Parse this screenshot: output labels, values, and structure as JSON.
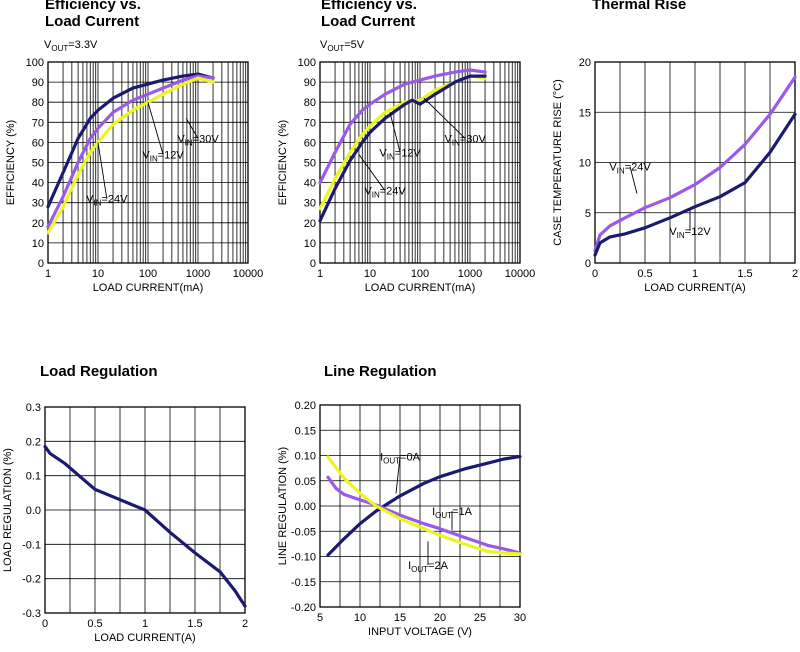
{
  "colors": {
    "navy": "#1c1a6e",
    "purple": "#9b59e8",
    "yellow": "#ecf520"
  },
  "chart_data": [
    {
      "type": "line",
      "title": "Efficiency vs.\nLoad Current",
      "subtitle_main": "V",
      "subtitle_sub": "OUT",
      "subtitle_tail": "=3.3V",
      "xlabel": "LOAD CURRENT(mA)",
      "ylabel": "EFFICIENCY (%)",
      "xscale": "log",
      "xlim": [
        1,
        10000
      ],
      "ylim": [
        0,
        100
      ],
      "xticks": [
        1,
        10,
        100,
        1000,
        10000
      ],
      "xtick_labels": [
        "1",
        "10",
        "100",
        "1000",
        "10000"
      ],
      "yticks": [
        0,
        10,
        20,
        30,
        40,
        50,
        60,
        70,
        80,
        90,
        100
      ],
      "ytick_labels": [
        "0",
        "10",
        "20",
        "30",
        "40",
        "50",
        "60",
        "70",
        "80",
        "90",
        "100"
      ],
      "series": [
        {
          "color_key": "navy",
          "points": [
            [
              1,
              28
            ],
            [
              2,
              45
            ],
            [
              4,
              62
            ],
            [
              7,
              72
            ],
            [
              10,
              76
            ],
            [
              20,
              82
            ],
            [
              50,
              87
            ],
            [
              100,
              89
            ],
            [
              200,
              91
            ],
            [
              500,
              93
            ],
            [
              1000,
              94
            ],
            [
              2000,
              92
            ]
          ]
        },
        {
          "color_key": "purple",
          "points": [
            [
              1,
              18
            ],
            [
              2,
              33
            ],
            [
              4,
              50
            ],
            [
              7,
              62
            ],
            [
              10,
              67
            ],
            [
              20,
              75
            ],
            [
              50,
              81
            ],
            [
              100,
              84
            ],
            [
              200,
              87
            ],
            [
              500,
              91
            ],
            [
              1000,
              93
            ],
            [
              2000,
              92
            ]
          ]
        },
        {
          "color_key": "yellow",
          "points": [
            [
              1,
              15
            ],
            [
              2,
              28
            ],
            [
              4,
              44
            ],
            [
              7,
              55
            ],
            [
              10,
              60
            ],
            [
              20,
              69
            ],
            [
              50,
              76
            ],
            [
              100,
              80
            ],
            [
              200,
              84
            ],
            [
              500,
              89
            ],
            [
              1000,
              92
            ],
            [
              2000,
              90
            ]
          ]
        }
      ],
      "annotations": [
        {
          "text": "V",
          "sub": "IN",
          "tail": "=30V",
          "x": 1000,
          "y": 60,
          "lx": 580,
          "ly": 72
        },
        {
          "text": "V",
          "sub": "IN",
          "tail": "=12V",
          "x": 200,
          "y": 52,
          "lx": 100,
          "ly": 80
        },
        {
          "text": "V",
          "sub": "IN",
          "tail": "=24V",
          "x": 15,
          "y": 30,
          "lx": 10,
          "ly": 60
        }
      ]
    },
    {
      "type": "line",
      "title": "Efficiency vs.\nLoad Current",
      "subtitle_main": "V",
      "subtitle_sub": "OUT",
      "subtitle_tail": "=5V",
      "xlabel": "LOAD CURRENT(mA)",
      "ylabel": "EFFICIENCY (%)",
      "xscale": "log",
      "xlim": [
        1,
        10000
      ],
      "ylim": [
        0,
        100
      ],
      "xticks": [
        1,
        10,
        100,
        1000,
        10000
      ],
      "xtick_labels": [
        "1",
        "10",
        "100",
        "1000",
        "10000"
      ],
      "yticks": [
        0,
        10,
        20,
        30,
        40,
        50,
        60,
        70,
        80,
        90,
        100
      ],
      "ytick_labels": [
        "0",
        "10",
        "20",
        "30",
        "40",
        "50",
        "60",
        "70",
        "80",
        "90",
        "100"
      ],
      "series": [
        {
          "color_key": "purple",
          "points": [
            [
              1,
              40
            ],
            [
              2,
              55
            ],
            [
              4,
              69
            ],
            [
              7,
              76
            ],
            [
              10,
              79
            ],
            [
              20,
              84
            ],
            [
              50,
              89
            ],
            [
              100,
              91
            ],
            [
              200,
              93
            ],
            [
              500,
              95
            ],
            [
              1000,
              96
            ],
            [
              2000,
              95
            ]
          ]
        },
        {
          "color_key": "yellow",
          "points": [
            [
              1,
              27
            ],
            [
              2,
              42
            ],
            [
              4,
              55
            ],
            [
              7,
              64
            ],
            [
              10,
              68
            ],
            [
              20,
              75
            ],
            [
              50,
              80
            ],
            [
              100,
              81
            ],
            [
              200,
              86
            ],
            [
              500,
              90
            ],
            [
              1000,
              93
            ],
            [
              2000,
              92
            ]
          ]
        },
        {
          "color_key": "navy",
          "points": [
            [
              1,
              21
            ],
            [
              2,
              37
            ],
            [
              4,
              51
            ],
            [
              7,
              60
            ],
            [
              10,
              65
            ],
            [
              20,
              72
            ],
            [
              50,
              79
            ],
            [
              70,
              81
            ],
            [
              100,
              79
            ],
            [
              200,
              84
            ],
            [
              500,
              90
            ],
            [
              1000,
              93
            ],
            [
              2000,
              93
            ]
          ]
        }
      ],
      "annotations": [
        {
          "text": "V",
          "sub": "IN",
          "tail": "=30V",
          "x": 800,
          "y": 60,
          "lx": 120,
          "ly": 82
        },
        {
          "text": "V",
          "sub": "IN",
          "tail": "=12V",
          "x": 40,
          "y": 53,
          "lx": 25,
          "ly": 75
        },
        {
          "text": "V",
          "sub": "IN",
          "tail": "=24V",
          "x": 20,
          "y": 34,
          "lx": 6,
          "ly": 54
        }
      ]
    },
    {
      "type": "line",
      "title": "Thermal Rise",
      "xlabel": "LOAD CURRENT(A)",
      "ylabel": "CASE TEMPERATURE RISE (°C)",
      "xlim": [
        0,
        2
      ],
      "ylim": [
        0,
        20
      ],
      "xticks": [
        0,
        0.5,
        1,
        1.5,
        2
      ],
      "xtick_labels": [
        "0",
        "0.5",
        "1",
        "1.5",
        "2"
      ],
      "yticks": [
        0,
        5,
        10,
        15,
        20
      ],
      "ytick_labels": [
        "0",
        "5",
        "10",
        "15",
        "20"
      ],
      "series": [
        {
          "color_key": "purple",
          "points": [
            [
              0,
              1.2
            ],
            [
              0.05,
              2.8
            ],
            [
              0.15,
              3.7
            ],
            [
              0.3,
              4.5
            ],
            [
              0.5,
              5.5
            ],
            [
              0.75,
              6.5
            ],
            [
              1,
              7.8
            ],
            [
              1.25,
              9.5
            ],
            [
              1.5,
              11.8
            ],
            [
              1.75,
              14.8
            ],
            [
              2,
              18.5
            ]
          ]
        },
        {
          "color_key": "navy",
          "points": [
            [
              0,
              0.8
            ],
            [
              0.05,
              2
            ],
            [
              0.15,
              2.6
            ],
            [
              0.3,
              2.9
            ],
            [
              0.5,
              3.5
            ],
            [
              0.75,
              4.5
            ],
            [
              1,
              5.6
            ],
            [
              1.25,
              6.6
            ],
            [
              1.5,
              8
            ],
            [
              1.75,
              11
            ],
            [
              2,
              14.8
            ]
          ]
        }
      ],
      "annotations": [
        {
          "text": "V",
          "sub": "IN",
          "tail": "=24V",
          "x": 0.35,
          "y": 9.2,
          "lx": 0.42,
          "ly": 6.9
        },
        {
          "text": "V",
          "sub": "IN",
          "tail": "=12V",
          "x": 0.95,
          "y": 2.8,
          "lx": 0.95,
          "ly": 5.3
        }
      ]
    },
    {
      "type": "line",
      "title": "Load Regulation",
      "xlabel": "LOAD CURRENT(A)",
      "ylabel": "LOAD REGULATION  (%)",
      "xlim": [
        0,
        2
      ],
      "ylim": [
        -0.3,
        0.3
      ],
      "xticks": [
        0,
        0.5,
        1,
        1.5,
        2
      ],
      "xtick_labels": [
        "0",
        "0.5",
        "1",
        "1.5",
        "2"
      ],
      "yticks": [
        -0.3,
        -0.2,
        -0.1,
        0,
        0.1,
        0.2,
        0.3
      ],
      "ytick_labels": [
        "-0.3",
        "-0.2",
        "-0.1",
        "0.0",
        "0.1",
        "0.2",
        "0.3"
      ],
      "series": [
        {
          "color_key": "navy",
          "points": [
            [
              0,
              0.185
            ],
            [
              0.05,
              0.165
            ],
            [
              0.2,
              0.135
            ],
            [
              0.4,
              0.085
            ],
            [
              0.5,
              0.06
            ],
            [
              0.75,
              0.03
            ],
            [
              1,
              0
            ],
            [
              1.25,
              -0.065
            ],
            [
              1.5,
              -0.125
            ],
            [
              1.75,
              -0.18
            ],
            [
              1.9,
              -0.235
            ],
            [
              2,
              -0.28
            ]
          ]
        }
      ],
      "annotations": []
    },
    {
      "type": "line",
      "title": "Line Regulation",
      "xlabel": "INPUT VOLTAGE (V)",
      "ylabel": "LINE REGULATION  (%)",
      "xlim": [
        5,
        30
      ],
      "ylim": [
        -0.2,
        0.2
      ],
      "xticks": [
        5,
        10,
        15,
        20,
        25,
        30
      ],
      "xtick_labels": [
        "5",
        "10",
        "15",
        "20",
        "25",
        "30"
      ],
      "yticks": [
        -0.2,
        -0.15,
        -0.1,
        -0.05,
        0,
        0.05,
        0.1,
        0.15,
        0.2
      ],
      "ytick_labels": [
        "-0.20",
        "-0.15",
        "-0.10",
        "-0.05",
        "0.00",
        "0.05",
        "0.10",
        "0.15",
        "0.20"
      ],
      "series": [
        {
          "color_key": "navy",
          "points": [
            [
              6,
              -0.097
            ],
            [
              8,
              -0.065
            ],
            [
              10,
              -0.035
            ],
            [
              12,
              -0.01
            ],
            [
              15,
              0.02
            ],
            [
              18,
              0.045
            ],
            [
              20,
              0.058
            ],
            [
              23,
              0.073
            ],
            [
              26,
              0.085
            ],
            [
              28,
              0.093
            ],
            [
              30,
              0.098
            ]
          ]
        },
        {
          "color_key": "purple",
          "points": [
            [
              6,
              0.057
            ],
            [
              7,
              0.035
            ],
            [
              8,
              0.023
            ],
            [
              10,
              0.012
            ],
            [
              12,
              0.002
            ],
            [
              15,
              -0.018
            ],
            [
              18,
              -0.035
            ],
            [
              20,
              -0.045
            ],
            [
              23,
              -0.062
            ],
            [
              26,
              -0.078
            ],
            [
              28,
              -0.085
            ],
            [
              30,
              -0.093
            ]
          ]
        },
        {
          "color_key": "yellow",
          "points": [
            [
              6,
              0.097
            ],
            [
              8,
              0.055
            ],
            [
              10,
              0.025
            ],
            [
              12,
              0
            ],
            [
              15,
              -0.025
            ],
            [
              18,
              -0.045
            ],
            [
              20,
              -0.058
            ],
            [
              23,
              -0.075
            ],
            [
              26,
              -0.09
            ],
            [
              28,
              -0.093
            ],
            [
              30,
              -0.095
            ]
          ]
        }
      ],
      "annotations": [
        {
          "text": "I",
          "sub": "OUT",
          "tail": "=0A",
          "x": 15,
          "y": 0.09,
          "lx": 14.5,
          "ly": 0.025
        },
        {
          "text": "I",
          "sub": "OUT",
          "tail": "=1A",
          "x": 21.5,
          "y": -0.018,
          "lx": 21.5,
          "ly": -0.048
        },
        {
          "text": "I",
          "sub": "OUT",
          "tail": "=2A",
          "x": 18.5,
          "y": -0.125,
          "lx": 18.5,
          "ly": -0.07
        }
      ]
    }
  ]
}
